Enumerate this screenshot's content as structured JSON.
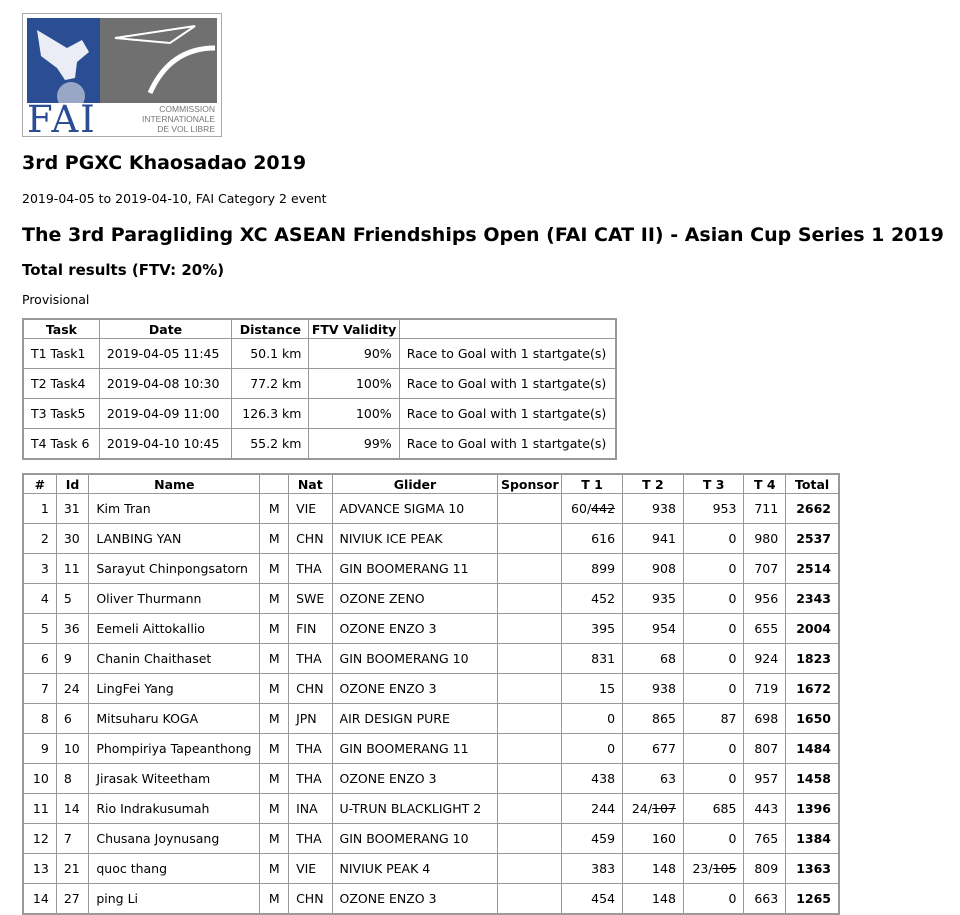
{
  "logo": {
    "text": "FAI",
    "subtitle": [
      "COMMISSION",
      "INTERNATIONALE",
      "DE VOL LIBRE"
    ]
  },
  "title": "3rd PGXC Khaosadao 2019",
  "subtitle": "2019-04-05 to 2019-04-10, FAI Category 2 event",
  "event_name": "The 3rd Paragliding XC ASEAN Friendships Open (FAI CAT II) - Asian Cup Series 1 2019",
  "results_title": "Total results (FTV: 20%)",
  "status": "Provisional",
  "tasks": {
    "headers": [
      "Task",
      "Date",
      "Distance",
      "FTV Validity",
      ""
    ],
    "rows": [
      [
        "T1 Task1",
        "2019-04-05 11:45",
        "50.1 km",
        "90%",
        "Race to Goal with 1 startgate(s)"
      ],
      [
        "T2 Task4",
        "2019-04-08 10:30",
        "77.2 km",
        "100%",
        "Race to Goal with 1 startgate(s)"
      ],
      [
        "T3 Task5",
        "2019-04-09 11:00",
        "126.3 km",
        "100%",
        "Race to Goal with 1 startgate(s)"
      ],
      [
        "T4 Task 6",
        "2019-04-10 10:45",
        "55.2 km",
        "99%",
        "Race to Goal with 1 startgate(s)"
      ]
    ]
  },
  "results": {
    "headers": [
      "#",
      "Id",
      "Name",
      "",
      "Nat",
      "Glider",
      "Sponsor",
      "T 1",
      "T 2",
      "T 3",
      "T 4",
      "Total"
    ],
    "rows": [
      {
        "rank": "1",
        "id": "31",
        "name": "Kim Tran",
        "sex": "M",
        "nat": "VIE",
        "glider": "ADVANCE SIGMA 10",
        "sponsor": "",
        "t": [
          {
            "v": "60/",
            "dropped": "442"
          },
          {
            "v": "938"
          },
          {
            "v": "953"
          },
          {
            "v": "711"
          }
        ],
        "total": "2662"
      },
      {
        "rank": "2",
        "id": "30",
        "name": "LANBING YAN",
        "sex": "M",
        "nat": "CHN",
        "glider": "NIVIUK ICE PEAK",
        "sponsor": "",
        "t": [
          {
            "v": "616"
          },
          {
            "v": "941"
          },
          {
            "v": "0"
          },
          {
            "v": "980"
          }
        ],
        "total": "2537"
      },
      {
        "rank": "3",
        "id": "11",
        "name": "Sarayut Chinpongsatorn",
        "sex": "M",
        "nat": "THA",
        "glider": "GIN BOOMERANG 11",
        "sponsor": "",
        "t": [
          {
            "v": "899"
          },
          {
            "v": "908"
          },
          {
            "v": "0"
          },
          {
            "v": "707"
          }
        ],
        "total": "2514"
      },
      {
        "rank": "4",
        "id": "5",
        "name": "Oliver Thurmann",
        "sex": "M",
        "nat": "SWE",
        "glider": "OZONE ZENO",
        "sponsor": "",
        "t": [
          {
            "v": "452"
          },
          {
            "v": "935"
          },
          {
            "v": "0"
          },
          {
            "v": "956"
          }
        ],
        "total": "2343"
      },
      {
        "rank": "5",
        "id": "36",
        "name": "Eemeli Aittokallio",
        "sex": "M",
        "nat": "FIN",
        "glider": "OZONE ENZO 3",
        "sponsor": "",
        "t": [
          {
            "v": "395"
          },
          {
            "v": "954"
          },
          {
            "v": "0"
          },
          {
            "v": "655"
          }
        ],
        "total": "2004"
      },
      {
        "rank": "6",
        "id": "9",
        "name": "Chanin Chaithaset",
        "sex": "M",
        "nat": "THA",
        "glider": "GIN BOOMERANG 10",
        "sponsor": "",
        "t": [
          {
            "v": "831"
          },
          {
            "v": "68"
          },
          {
            "v": "0"
          },
          {
            "v": "924"
          }
        ],
        "total": "1823"
      },
      {
        "rank": "7",
        "id": "24",
        "name": "LingFei Yang",
        "sex": "M",
        "nat": "CHN",
        "glider": "OZONE ENZO 3",
        "sponsor": "",
        "t": [
          {
            "v": "15"
          },
          {
            "v": "938"
          },
          {
            "v": "0"
          },
          {
            "v": "719"
          }
        ],
        "total": "1672"
      },
      {
        "rank": "8",
        "id": "6",
        "name": "Mitsuharu KOGA",
        "sex": "M",
        "nat": "JPN",
        "glider": "AIR DESIGN PURE",
        "sponsor": "",
        "t": [
          {
            "v": "0"
          },
          {
            "v": "865"
          },
          {
            "v": "87"
          },
          {
            "v": "698"
          }
        ],
        "total": "1650"
      },
      {
        "rank": "9",
        "id": "10",
        "name": "Phompiriya Tapeanthong",
        "sex": "M",
        "nat": "THA",
        "glider": "GIN BOOMERANG 11",
        "sponsor": "",
        "t": [
          {
            "v": "0"
          },
          {
            "v": "677"
          },
          {
            "v": "0"
          },
          {
            "v": "807"
          }
        ],
        "total": "1484"
      },
      {
        "rank": "10",
        "id": "8",
        "name": "Jirasak Witeetham",
        "sex": "M",
        "nat": "THA",
        "glider": "OZONE ENZO 3",
        "sponsor": "",
        "t": [
          {
            "v": "438"
          },
          {
            "v": "63"
          },
          {
            "v": "0"
          },
          {
            "v": "957"
          }
        ],
        "total": "1458"
      },
      {
        "rank": "11",
        "id": "14",
        "name": "Rio Indrakusumah",
        "sex": "M",
        "nat": "INA",
        "glider": "U-TRUN BLACKLIGHT 2",
        "sponsor": "",
        "t": [
          {
            "v": "244"
          },
          {
            "v": "24/",
            "dropped": "107"
          },
          {
            "v": "685"
          },
          {
            "v": "443"
          }
        ],
        "total": "1396"
      },
      {
        "rank": "12",
        "id": "7",
        "name": "Chusana Joynusang",
        "sex": "M",
        "nat": "THA",
        "glider": "GIN BOOMERANG 10",
        "sponsor": "",
        "t": [
          {
            "v": "459"
          },
          {
            "v": "160"
          },
          {
            "v": "0"
          },
          {
            "v": "765"
          }
        ],
        "total": "1384"
      },
      {
        "rank": "13",
        "id": "21",
        "name": "quoc thang",
        "sex": "M",
        "nat": "VIE",
        "glider": "NIVIUK PEAK 4",
        "sponsor": "",
        "t": [
          {
            "v": "383"
          },
          {
            "v": "148"
          },
          {
            "v": "23/",
            "dropped": "105"
          },
          {
            "v": "809"
          }
        ],
        "total": "1363"
      },
      {
        "rank": "14",
        "id": "27",
        "name": "ping Li",
        "sex": "M",
        "nat": "CHN",
        "glider": "OZONE ENZO 3",
        "sponsor": "",
        "t": [
          {
            "v": "454"
          },
          {
            "v": "148"
          },
          {
            "v": "0"
          },
          {
            "v": "663"
          }
        ],
        "total": "1265"
      }
    ]
  },
  "colors": {
    "logo_blue": "#2b4d94",
    "logo_grey": "#707070",
    "border": "#999999"
  }
}
